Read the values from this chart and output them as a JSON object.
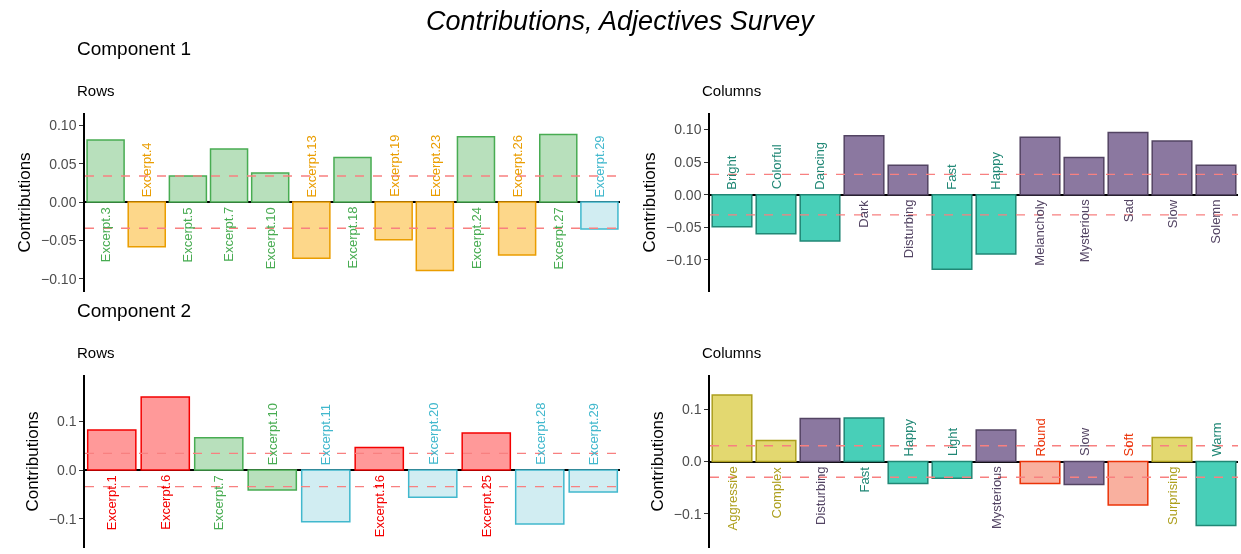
{
  "chart_data": [
    {
      "type": "bar",
      "title": "Component 1",
      "subtitle": "Rows",
      "ylabel": "Contributions",
      "annotations": [
        "Contributions, Adjectives Survey"
      ],
      "categories": [
        "Excerpt.3",
        "Excerpt.4",
        "Excerpt.5",
        "Excerpt.7",
        "Excerpt.10",
        "Excerpt.13",
        "Excerpt.18",
        "Excerpt.19",
        "Excerpt.23",
        "Excerpt.24",
        "Excerpt.26",
        "Excerpt.27",
        "Excerpt.29"
      ],
      "values": [
        0.081,
        -0.058,
        0.034,
        0.069,
        0.038,
        -0.073,
        0.058,
        -0.049,
        -0.089,
        0.085,
        -0.069,
        0.088,
        -0.035
      ],
      "colors": [
        "#b8e0bc",
        "#fdd78a",
        "#b8e0bc",
        "#b8e0bc",
        "#b8e0bc",
        "#fdd78a",
        "#b8e0bc",
        "#fdd78a",
        "#fdd78a",
        "#b8e0bc",
        "#fdd78a",
        "#b8e0bc",
        "#d1edf2"
      ],
      "ylim": [
        -0.117,
        0.116
      ],
      "yticks": [
        {
          "value": -0.1,
          "label": "−0.10"
        },
        {
          "value": -0.05,
          "label": "−0.05"
        },
        {
          "value": 0,
          "label": "0.00"
        },
        {
          "value": 0.05,
          "label": "0.05"
        },
        {
          "value": 0.1,
          "label": "0.10"
        }
      ],
      "ref_lines": [
        {
          "axis": "y",
          "value": 0.034,
          "color": "#f88080",
          "line_style": "dashed"
        },
        {
          "axis": "y",
          "value": -0.034,
          "color": "#f88080",
          "line_style": "dashed"
        }
      ]
    },
    {
      "type": "bar",
      "subtitle": "Columns",
      "ylabel": "Contributions",
      "categories": [
        "Bright",
        "Colorful",
        "Dancing",
        "Dark",
        "Disturbing",
        "Fast",
        "Happy",
        "Melancholy",
        "Mysterious",
        "Sad",
        "Slow",
        "Solemn"
      ],
      "values": [
        -0.049,
        -0.06,
        -0.071,
        0.09,
        0.045,
        -0.114,
        -0.091,
        0.088,
        0.057,
        0.095,
        0.082,
        0.045
      ],
      "colors": [
        "#48cfb8",
        "#48cfb8",
        "#48cfb8",
        "#8b78a0",
        "#8b78a0",
        "#48cfb8",
        "#48cfb8",
        "#8b78a0",
        "#8b78a0",
        "#8b78a0",
        "#8b78a0",
        "#8b78a0"
      ],
      "ylim": [
        -0.149,
        0.125
      ],
      "yticks": [
        {
          "value": -0.1,
          "label": "−0.10"
        },
        {
          "value": -0.05,
          "label": "−0.05"
        },
        {
          "value": 0,
          "label": "0.00"
        },
        {
          "value": 0.05,
          "label": "0.05"
        },
        {
          "value": 0.1,
          "label": "0.10"
        }
      ],
      "ref_lines": [
        {
          "axis": "y",
          "value": 0.031,
          "color": "#f88080",
          "line_style": "dashed"
        },
        {
          "axis": "y",
          "value": -0.031,
          "color": "#f88080",
          "line_style": "dashed"
        }
      ]
    },
    {
      "type": "bar",
      "title": "Component 2",
      "subtitle": "Rows",
      "ylabel": "Contributions",
      "categories": [
        "Excerpt.1",
        "Excerpt.6",
        "Excerpt.7",
        "Excerpt.10",
        "Excerpt.11",
        "Excerpt.16",
        "Excerpt.20",
        "Excerpt.25",
        "Excerpt.28",
        "Excerpt.29"
      ],
      "values": [
        0.082,
        0.15,
        0.066,
        -0.041,
        -0.106,
        0.046,
        -0.056,
        0.076,
        -0.111,
        -0.045
      ],
      "colors": [
        "#ff9999",
        "#ff9999",
        "#b8e0bc",
        "#b8e0bc",
        "#d1edf2",
        "#ff9999",
        "#d1edf2",
        "#ff9999",
        "#d1edf2",
        "#d1edf2"
      ],
      "ylim": [
        -0.16,
        0.195
      ],
      "yticks": [
        {
          "value": -0.1,
          "label": "−0.1"
        },
        {
          "value": 0,
          "label": "0.0"
        },
        {
          "value": 0.1,
          "label": "0.1"
        }
      ],
      "ref_lines": [
        {
          "axis": "y",
          "value": 0.034,
          "color": "#f88080",
          "line_style": "dashed"
        },
        {
          "axis": "y",
          "value": -0.034,
          "color": "#f88080",
          "line_style": "dashed"
        }
      ]
    },
    {
      "type": "bar",
      "subtitle": "Columns",
      "ylabel": "Contributions",
      "categories": [
        "Aggressive",
        "Complex",
        "Disturbing",
        "Fast",
        "Happy",
        "Light",
        "Mysterious",
        "Round",
        "Slow",
        "Soft",
        "Surprising",
        "Warm"
      ],
      "values": [
        0.127,
        0.04,
        0.082,
        0.083,
        -0.042,
        -0.032,
        0.06,
        -0.042,
        -0.044,
        -0.083,
        0.046,
        -0.122
      ],
      "colors": [
        "#e3d870",
        "#e3d870",
        "#8b78a0",
        "#48cfb8",
        "#48cfb8",
        "#48cfb8",
        "#8b78a0",
        "#f9b09f",
        "#8b78a0",
        "#f9b09f",
        "#e3d870",
        "#48cfb8"
      ],
      "ylim": [
        -0.165,
        0.165
      ],
      "yticks": [
        {
          "value": -0.1,
          "label": "−0.1"
        },
        {
          "value": 0,
          "label": "0.0"
        },
        {
          "value": 0.1,
          "label": "0.1"
        }
      ],
      "ref_lines": [
        {
          "axis": "y",
          "value": 0.03,
          "color": "#f88080",
          "line_style": "dashed"
        },
        {
          "axis": "y",
          "value": -0.03,
          "color": "#f88080",
          "line_style": "dashed"
        }
      ]
    }
  ]
}
